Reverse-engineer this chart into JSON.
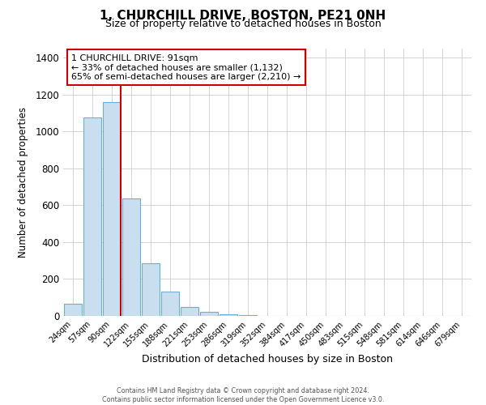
{
  "title": "1, CHURCHILL DRIVE, BOSTON, PE21 0NH",
  "subtitle": "Size of property relative to detached houses in Boston",
  "xlabel": "Distribution of detached houses by size in Boston",
  "ylabel": "Number of detached properties",
  "bar_labels": [
    "24sqm",
    "57sqm",
    "90sqm",
    "122sqm",
    "155sqm",
    "188sqm",
    "221sqm",
    "253sqm",
    "286sqm",
    "319sqm",
    "352sqm",
    "384sqm",
    "417sqm",
    "450sqm",
    "483sqm",
    "515sqm",
    "548sqm",
    "581sqm",
    "614sqm",
    "646sqm",
    "679sqm"
  ],
  "bar_values": [
    65,
    1075,
    1160,
    635,
    285,
    130,
    47,
    20,
    10,
    5,
    2,
    1,
    0,
    0,
    0,
    0,
    0,
    0,
    0,
    0,
    0
  ],
  "bar_color": "#c9dff0",
  "bar_edge_color": "#6baed6",
  "property_line_color": "#cc0000",
  "ylim": [
    0,
    1450
  ],
  "yticks": [
    0,
    200,
    400,
    600,
    800,
    1000,
    1200,
    1400
  ],
  "annotation_title": "1 CHURCHILL DRIVE: 91sqm",
  "annotation_line1": "← 33% of detached houses are smaller (1,132)",
  "annotation_line2": "65% of semi-detached houses are larger (2,210) →",
  "annotation_box_color": "#ffffff",
  "annotation_box_edge_color": "#cc0000",
  "footer_line1": "Contains HM Land Registry data © Crown copyright and database right 2024.",
  "footer_line2": "Contains public sector information licensed under the Open Government Licence v3.0.",
  "background_color": "#ffffff",
  "grid_color": "#cccccc",
  "title_fontsize": 11,
  "subtitle_fontsize": 9
}
